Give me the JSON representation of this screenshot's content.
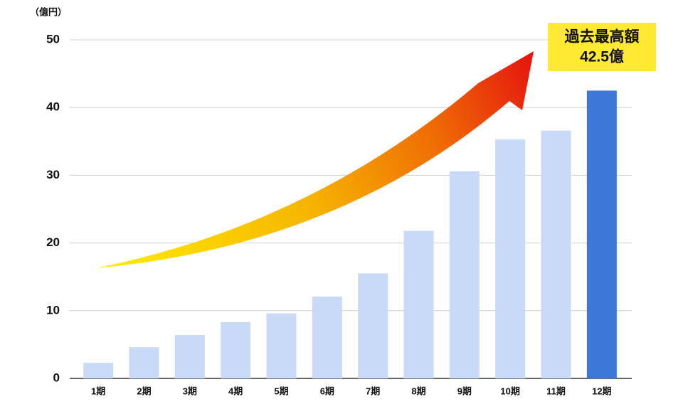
{
  "chart_data": {
    "type": "bar",
    "unit_label": "（億円）",
    "categories": [
      "1期",
      "2期",
      "3期",
      "4期",
      "5期",
      "6期",
      "7期",
      "8期",
      "9期",
      "10期",
      "11期",
      "12期"
    ],
    "values": [
      2.3,
      4.6,
      6.4,
      8.3,
      9.6,
      12.1,
      15.5,
      21.8,
      30.6,
      35.3,
      36.6,
      42.5
    ],
    "colors": [
      "#c9daf8",
      "#c9daf8",
      "#c9daf8",
      "#c9daf8",
      "#c9daf8",
      "#c9daf8",
      "#c9daf8",
      "#c9daf8",
      "#c9daf8",
      "#c9daf8",
      "#c9daf8",
      "#3c78d8"
    ],
    "ylim": [
      0,
      50
    ],
    "yticks": [
      0,
      10,
      20,
      30,
      40,
      50
    ],
    "grid": true,
    "annotation": [
      "過去最高額",
      "42.5億"
    ]
  }
}
